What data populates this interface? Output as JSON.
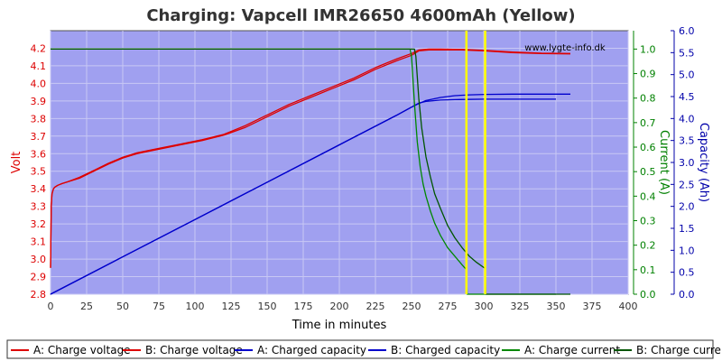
{
  "chart_data": {
    "type": "line",
    "title": "Charging: Vapcell IMR26650 4600mAh (Yellow)",
    "watermark": "www.lygte-info.dk",
    "xlabel": "Time in minutes",
    "xlim": [
      0,
      400
    ],
    "xticks": [
      0,
      25,
      50,
      75,
      100,
      125,
      150,
      175,
      200,
      225,
      250,
      275,
      300,
      325,
      350,
      375,
      400
    ],
    "ylabel_left": "Volt",
    "ylim_left": [
      2.8,
      4.3
    ],
    "yticks_left": [
      2.8,
      2.9,
      3.0,
      3.1,
      3.2,
      3.3,
      3.4,
      3.5,
      3.6,
      3.7,
      3.8,
      3.9,
      4.0,
      4.1,
      4.2
    ],
    "ylabel_current": "Current (A)",
    "ylim_current": [
      0,
      1.075
    ],
    "yticks_current": [
      0.0,
      0.1,
      0.2,
      0.3,
      0.4,
      0.5,
      0.6,
      0.7,
      0.8,
      0.9,
      1.0
    ],
    "ylabel_capacity": "Capacity (Ah)",
    "ylim_capacity": [
      0,
      6.0
    ],
    "yticks_capacity": [
      0.0,
      0.5,
      1.0,
      1.5,
      2.0,
      2.5,
      3.0,
      3.5,
      4.0,
      4.5,
      5.0,
      5.5,
      6.0
    ],
    "grid": true,
    "legend_position": "bottom",
    "colors": {
      "voltage": "#dd0000",
      "capacity": "#0000cc",
      "current": "#007700",
      "plot_bg": "#a0a0f0",
      "marker": "#ffff00",
      "axis_volt": "#dd0000",
      "axis_current": "#008000",
      "axis_capacity": "#0000aa"
    },
    "markers_x": [
      288,
      301
    ],
    "series": [
      {
        "name": "A: Charge voltage",
        "axis": "volt",
        "color": "#dd0000",
        "x": [
          0,
          0.5,
          1,
          2,
          3,
          5,
          8,
          12,
          20,
          30,
          40,
          50,
          60,
          75,
          90,
          105,
          120,
          135,
          150,
          165,
          180,
          195,
          210,
          225,
          240,
          250,
          255,
          262,
          270,
          285,
          300,
          320,
          340,
          360
        ],
        "y": [
          2.95,
          3.3,
          3.37,
          3.4,
          3.41,
          3.42,
          3.43,
          3.44,
          3.46,
          3.5,
          3.54,
          3.575,
          3.6,
          3.625,
          3.65,
          3.675,
          3.705,
          3.75,
          3.81,
          3.87,
          3.92,
          3.97,
          4.02,
          4.08,
          4.13,
          4.16,
          4.185,
          4.19,
          4.19,
          4.19,
          4.185,
          4.175,
          4.17,
          4.168
        ]
      },
      {
        "name": "B: Charge voltage",
        "axis": "volt",
        "color": "#dd0000",
        "x": [
          0,
          0.5,
          1,
          2,
          3,
          5,
          8,
          12,
          20,
          30,
          40,
          50,
          60,
          75,
          90,
          105,
          120,
          135,
          150,
          165,
          180,
          195,
          210,
          225,
          240,
          250,
          255,
          262,
          270,
          285,
          300,
          320,
          340,
          360
        ],
        "y": [
          2.95,
          3.3,
          3.37,
          3.4,
          3.41,
          3.42,
          3.43,
          3.44,
          3.465,
          3.505,
          3.545,
          3.58,
          3.605,
          3.63,
          3.655,
          3.68,
          3.71,
          3.76,
          3.82,
          3.88,
          3.93,
          3.98,
          4.03,
          4.09,
          4.14,
          4.17,
          4.19,
          4.195,
          4.195,
          4.193,
          4.188,
          4.178,
          4.172,
          4.17
        ]
      },
      {
        "name": "A: Charged capacity",
        "axis": "capacity",
        "color": "#0000cc",
        "x": [
          0,
          50,
          100,
          150,
          200,
          240,
          250,
          255,
          260,
          270,
          280,
          288,
          300,
          320,
          350
        ],
        "y": [
          0,
          0.85,
          1.7,
          2.55,
          3.4,
          4.08,
          4.26,
          4.35,
          4.39,
          4.42,
          4.43,
          4.435,
          4.44,
          4.44,
          4.44
        ]
      },
      {
        "name": "B: Charged capacity",
        "axis": "capacity",
        "color": "#0000cc",
        "x": [
          0,
          50,
          100,
          150,
          200,
          240,
          250,
          255,
          260,
          270,
          280,
          290,
          301,
          320,
          360
        ],
        "y": [
          0,
          0.85,
          1.7,
          2.55,
          3.4,
          4.08,
          4.26,
          4.34,
          4.41,
          4.48,
          4.52,
          4.54,
          4.55,
          4.555,
          4.555
        ]
      },
      {
        "name": "A: Charge current",
        "axis": "current",
        "color": "#008800",
        "x": [
          0,
          249,
          250,
          252,
          254,
          256,
          258,
          260,
          263,
          266,
          270,
          275,
          280,
          285,
          288,
          288.5,
          350
        ],
        "y": [
          1.0,
          1.0,
          0.97,
          0.78,
          0.62,
          0.52,
          0.45,
          0.4,
          0.34,
          0.29,
          0.24,
          0.19,
          0.155,
          0.12,
          0.1,
          0.0,
          0.0
        ]
      },
      {
        "name": "B: Charge current",
        "axis": "current",
        "color": "#005500",
        "x": [
          0,
          250,
          252,
          253,
          255,
          257,
          260,
          263,
          266,
          270,
          275,
          280,
          285,
          290,
          295,
          301,
          301.5,
          360
        ],
        "y": [
          1.0,
          1.0,
          1.0,
          0.97,
          0.8,
          0.68,
          0.56,
          0.48,
          0.41,
          0.35,
          0.28,
          0.23,
          0.19,
          0.155,
          0.13,
          0.105,
          0.0,
          0.0
        ]
      }
    ]
  }
}
